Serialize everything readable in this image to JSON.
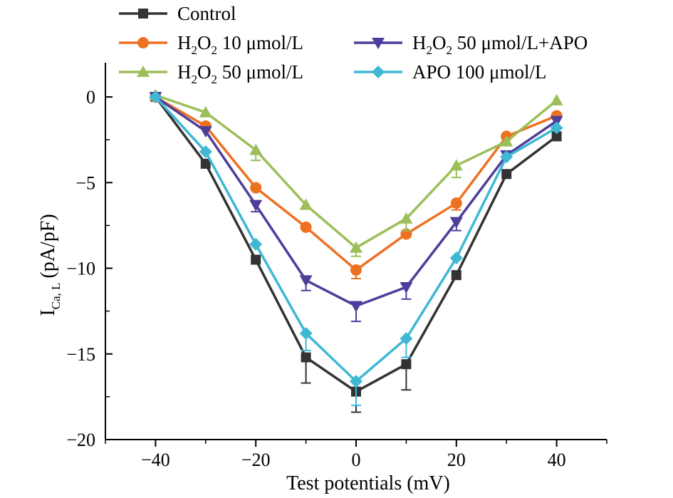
{
  "chart_data": {
    "type": "line",
    "xlabel": "Test potentials (mV)",
    "ylabel": {
      "main": "I",
      "sub": "Ca, L",
      "unit": "(pA/pF)"
    },
    "xlim": [
      -50,
      50
    ],
    "ylim": [
      -20,
      2
    ],
    "x_ticks": [
      -40,
      -20,
      0,
      20,
      40
    ],
    "x_tick_labels": [
      "−40",
      "−20",
      "0",
      "20",
      "40"
    ],
    "y_ticks": [
      0,
      -5,
      -10,
      -15,
      -20
    ],
    "y_tick_labels": [
      "0",
      "−5",
      "−10",
      "−15",
      "−20"
    ],
    "x": [
      -40,
      -30,
      -20,
      -10,
      0,
      10,
      20,
      30,
      40
    ],
    "series": [
      {
        "name": "Control",
        "legend": {
          "pre": "Control",
          "sub1": "",
          "mid": "",
          "sub2": "",
          "post": ""
        },
        "color": "#333333",
        "marker": "square",
        "values": [
          0,
          -3.9,
          -9.5,
          -15.2,
          -17.2,
          -15.6,
          -10.4,
          -4.5,
          -2.3
        ],
        "errors": [
          0,
          0,
          0,
          1.5,
          1.2,
          1.5,
          0,
          0,
          0
        ]
      },
      {
        "name": "H2O2 10 μmol/L",
        "legend": {
          "pre": "H",
          "sub1": "2",
          "mid": "O",
          "sub2": "2",
          "post": " 10 μmol/L"
        },
        "color": "#ee7122",
        "marker": "circle",
        "values": [
          0,
          -1.7,
          -5.3,
          -7.6,
          -10.1,
          -8.0,
          -6.2,
          -2.3,
          -1.1
        ],
        "errors": [
          0,
          0,
          0,
          0,
          0.5,
          0,
          0.4,
          0,
          0
        ]
      },
      {
        "name": "H2O2 50 μmol/L",
        "legend": {
          "pre": "H",
          "sub1": "2",
          "mid": "O",
          "sub2": "2",
          "post": " 50 μmol/L"
        },
        "color": "#9cbf59",
        "marker": "triangle-up",
        "values": [
          0.1,
          -0.9,
          -3.1,
          -6.3,
          -8.8,
          -7.1,
          -4.0,
          -2.6,
          -0.2
        ],
        "errors": [
          0,
          0,
          0.6,
          0,
          0.5,
          0.7,
          0.7,
          0,
          0
        ]
      },
      {
        "name": "H2O2 50 μmol/L+APO",
        "legend": {
          "pre": "H",
          "sub1": "2",
          "mid": "O",
          "sub2": "2",
          "post": " 50 μmol/L+APO"
        },
        "color": "#4f3d9b",
        "marker": "triangle-down",
        "values": [
          0,
          -2.0,
          -6.3,
          -10.7,
          -12.2,
          -11.1,
          -7.3,
          -3.4,
          -1.4
        ],
        "errors": [
          0,
          0,
          0.4,
          0.6,
          0.9,
          0.7,
          0.5,
          0,
          0
        ]
      },
      {
        "name": "APO 100 μmol/L",
        "legend": {
          "pre": "APO 100 μmol/L",
          "sub1": "",
          "mid": "",
          "sub2": "",
          "post": ""
        },
        "color": "#3fb8d4",
        "marker": "diamond",
        "values": [
          0,
          -3.2,
          -8.6,
          -13.8,
          -16.6,
          -14.1,
          -9.4,
          -3.5,
          -1.8
        ],
        "errors": [
          0,
          0,
          0,
          1.0,
          1.4,
          1.1,
          0,
          0,
          0
        ]
      }
    ],
    "grid": false,
    "legend_position": "top"
  }
}
